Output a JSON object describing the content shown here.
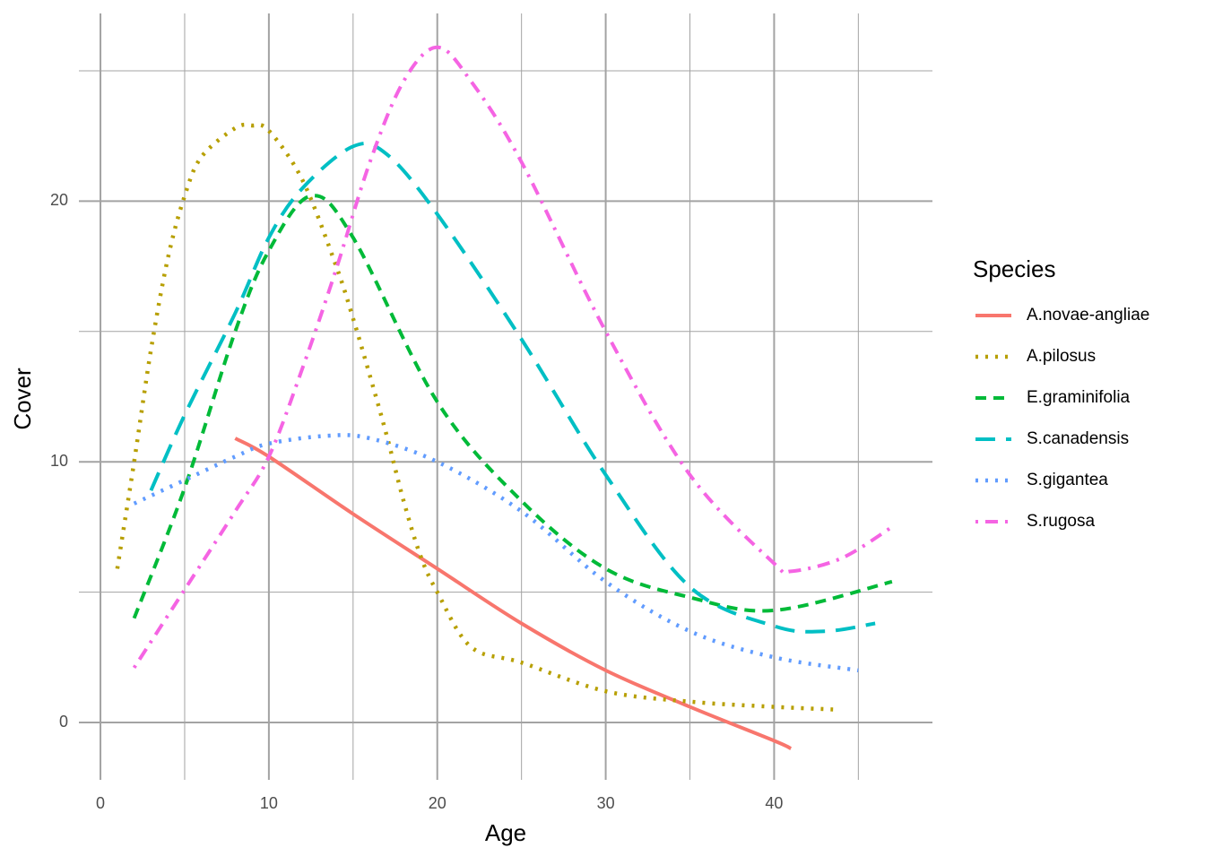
{
  "chart_data": {
    "type": "line",
    "x_label": "Age",
    "y_label": "Cover",
    "xlim": [
      -1.28,
      49.4
    ],
    "ylim": [
      -2.2,
      27.2
    ],
    "xticks": [
      0,
      10,
      20,
      30,
      40
    ],
    "yticks": [
      0,
      10,
      20
    ],
    "minor_xticks": [
      5,
      15,
      25,
      35,
      45
    ],
    "minor_yticks": [
      5,
      15,
      25
    ],
    "grid": true,
    "legend_title": "Species",
    "legend": "right",
    "series": [
      {
        "name": "A.novae-angliae",
        "color": "#F8766D",
        "linetype": "solid",
        "x": [
          8,
          10,
          15,
          20,
          25,
          30,
          35,
          40,
          41
        ],
        "values": [
          10.9,
          10.2,
          8.0,
          5.9,
          3.8,
          2.0,
          0.6,
          -0.7,
          -1.0
        ]
      },
      {
        "name": "A.pilosus",
        "color": "#B79F00",
        "linetype": "dotted",
        "x": [
          1,
          2,
          3,
          4,
          5,
          6,
          8,
          9,
          10,
          12,
          14,
          15,
          16,
          17,
          18,
          19,
          20,
          22,
          25,
          30,
          35,
          40,
          43.5
        ],
        "values": [
          5.9,
          10,
          14.3,
          17.8,
          20.2,
          21.7,
          22.8,
          22.9,
          22.7,
          20.8,
          17.5,
          15.5,
          13.3,
          11.0,
          8.5,
          6.4,
          5.0,
          2.9,
          2.3,
          1.2,
          0.8,
          0.6,
          0.5
        ]
      },
      {
        "name": "E.graminifolia",
        "color": "#00BA38",
        "linetype": "dashed",
        "x": [
          2,
          5,
          8,
          10,
          12.5,
          15,
          20,
          25,
          30,
          35,
          40,
          47
        ],
        "values": [
          4.0,
          9.0,
          15.0,
          18.1,
          20.2,
          18.6,
          12.3,
          8.5,
          5.9,
          4.8,
          4.3,
          5.4
        ]
      },
      {
        "name": "S.canadensis",
        "color": "#00BFC4",
        "linetype": "longdash",
        "x": [
          3,
          5,
          8,
          10,
          12,
          15,
          17,
          20,
          25,
          30,
          35,
          40,
          43,
          46
        ],
        "values": [
          8.9,
          11.8,
          15.7,
          18.6,
          20.5,
          22.1,
          21.8,
          19.5,
          14.7,
          9.5,
          5.2,
          3.7,
          3.5,
          3.8
        ]
      },
      {
        "name": "S.gigantea",
        "color": "#619CFF",
        "linetype": "dotted",
        "x": [
          2,
          5,
          8,
          10,
          13.5,
          16,
          20,
          25,
          30,
          35,
          40,
          45
        ],
        "values": [
          8.4,
          9.3,
          10.2,
          10.7,
          11.0,
          10.9,
          10.0,
          8.1,
          5.4,
          3.5,
          2.5,
          2.0
        ]
      },
      {
        "name": "S.rugosa",
        "color": "#F564E3",
        "linetype": "dotdash",
        "x": [
          2,
          5,
          8,
          10,
          12,
          14,
          16,
          18,
          20,
          22,
          25,
          30,
          35,
          40,
          41,
          44,
          47
        ],
        "values": [
          2.1,
          5.1,
          8.1,
          10.2,
          13.6,
          17.4,
          21.5,
          24.6,
          25.9,
          24.6,
          21.5,
          15.0,
          9.5,
          6.1,
          5.8,
          6.3,
          7.5
        ]
      }
    ]
  }
}
